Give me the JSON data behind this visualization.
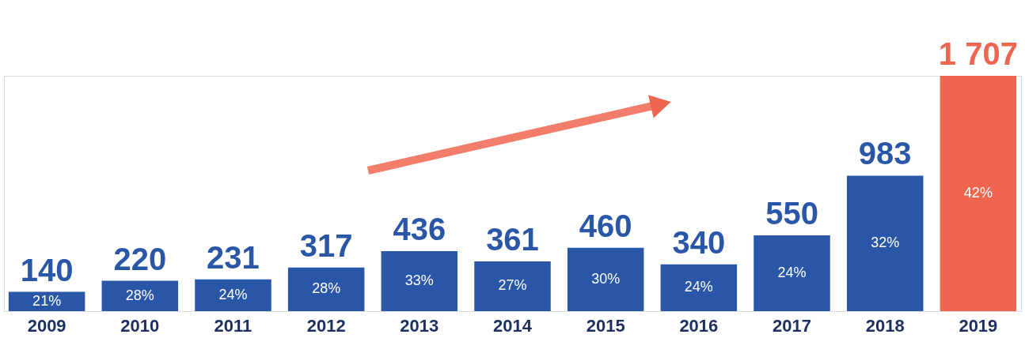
{
  "chart_data": {
    "type": "bar",
    "categories": [
      "2009",
      "2010",
      "2011",
      "2012",
      "2013",
      "2014",
      "2015",
      "2016",
      "2017",
      "2018",
      "2019"
    ],
    "values": [
      140,
      220,
      231,
      317,
      436,
      361,
      460,
      340,
      550,
      983,
      1707
    ],
    "colors": [
      "#2a56a8",
      "#2a56a8",
      "#2a56a8",
      "#2a56a8",
      "#2a56a8",
      "#2a56a8",
      "#2a56a8",
      "#2a56a8",
      "#2a56a8",
      "#2a56a8",
      "#ee6650"
    ],
    "value_labels": [
      "140",
      "220",
      "231",
      "317",
      "436",
      "361",
      "460",
      "340",
      "550",
      "983",
      "1 707"
    ],
    "annotations": [
      "21%",
      "28%",
      "24%",
      "28%",
      "33%",
      "27%",
      "30%",
      "24%",
      "24%",
      "32%",
      "42%"
    ],
    "grid": false
  }
}
